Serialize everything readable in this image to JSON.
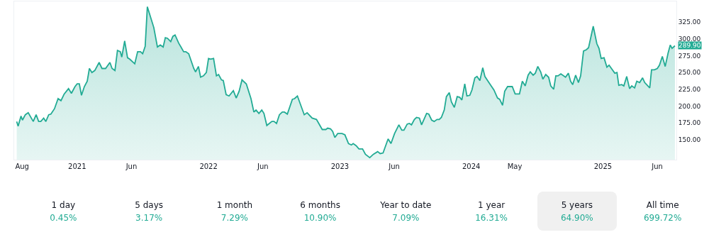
{
  "chart_data": [
    {
      "type": "area",
      "x": [
        "2020-07-17",
        "2020-07-21",
        "2020-07-29",
        "2020-08-02",
        "2020-08-10",
        "2020-08-18",
        "2020-09-01",
        "2020-09-09",
        "2020-09-16",
        "2020-09-22",
        "2020-09-30",
        "2020-10-06",
        "2020-10-14",
        "2020-10-20",
        "2020-10-30",
        "2020-11-09",
        "2020-11-17",
        "2020-11-26",
        "2020-12-08",
        "2020-12-16",
        "2020-12-26",
        "2021-01-01",
        "2021-01-07",
        "2021-01-13",
        "2021-01-21",
        "2021-01-29",
        "2021-02-04",
        "2021-02-11",
        "2021-02-19",
        "2021-03-03",
        "2021-03-11",
        "2021-03-21",
        "2021-04-02",
        "2021-04-08",
        "2021-04-16",
        "2021-04-23",
        "2021-05-01",
        "2021-05-05",
        "2021-05-13",
        "2021-05-21",
        "2021-05-27",
        "2021-06-10",
        "2021-06-18",
        "2021-06-26",
        "2021-07-02",
        "2021-07-09",
        "2021-07-15",
        "2021-08-02",
        "2021-08-12",
        "2021-08-20",
        "2021-08-28",
        "2021-09-03",
        "2021-09-09",
        "2021-09-18",
        "2021-09-24",
        "2021-09-30",
        "2021-10-10",
        "2021-10-24",
        "2021-10-30",
        "2021-11-07",
        "2021-11-21",
        "2021-11-26",
        "2021-12-04",
        "2021-12-10",
        "2021-12-18",
        "2021-12-26",
        "2022-01-01",
        "2022-01-07",
        "2022-01-15",
        "2022-01-23",
        "2022-01-29",
        "2022-02-06",
        "2022-02-11",
        "2022-02-19",
        "2022-02-27",
        "2022-03-11",
        "2022-03-19",
        "2022-03-27",
        "2022-04-04",
        "2022-04-16",
        "2022-04-29",
        "2022-05-07",
        "2022-05-13",
        "2022-05-21",
        "2022-05-29",
        "2022-06-04",
        "2022-06-12",
        "2022-06-26",
        "2022-07-02",
        "2022-07-09",
        "2022-07-17",
        "2022-07-25",
        "2022-07-31",
        "2022-08-08",
        "2022-08-22",
        "2022-08-28",
        "2022-09-05",
        "2022-09-24",
        "2022-10-02",
        "2022-10-16",
        "2022-10-28",
        "2022-11-13",
        "2022-11-23",
        "2022-11-28",
        "2022-12-06",
        "2022-12-12",
        "2022-12-18",
        "2022-12-26",
        "2023-01-07",
        "2023-01-15",
        "2023-01-25",
        "2023-02-02",
        "2023-02-07",
        "2023-02-15",
        "2023-02-23",
        "2023-03-05",
        "2023-03-13",
        "2023-03-25",
        "2023-04-04",
        "2023-04-16",
        "2023-04-23",
        "2023-05-01",
        "2023-05-15",
        "2023-05-23",
        "2023-06-02",
        "2023-06-14",
        "2023-06-22",
        "2023-06-28",
        "2023-07-07",
        "2023-07-13",
        "2023-07-19",
        "2023-07-27",
        "2023-08-02",
        "2023-08-10",
        "2023-08-16",
        "2023-08-30",
        "2023-09-05",
        "2023-09-13",
        "2023-09-20",
        "2023-09-28",
        "2023-10-04",
        "2023-10-10",
        "2023-10-18",
        "2023-10-24",
        "2023-11-01",
        "2023-11-07",
        "2023-11-15",
        "2023-11-23",
        "2023-11-30",
        "2023-12-06",
        "2023-12-14",
        "2023-12-20",
        "2023-12-28",
        "2024-01-03",
        "2024-01-11",
        "2024-01-17",
        "2024-01-25",
        "2024-02-02",
        "2024-02-08",
        "2024-02-23",
        "2024-03-04",
        "2024-03-14",
        "2024-03-20",
        "2024-03-28",
        "2024-04-03",
        "2024-04-11",
        "2024-04-24",
        "2024-05-02",
        "2024-05-14",
        "2024-05-22",
        "2024-05-30",
        "2024-06-07",
        "2024-06-13",
        "2024-06-21",
        "2024-06-27",
        "2024-07-04",
        "2024-07-12",
        "2024-07-18",
        "2024-07-26",
        "2024-08-03",
        "2024-08-09",
        "2024-08-17",
        "2024-08-23",
        "2024-08-29",
        "2024-09-06",
        "2024-09-19",
        "2024-09-27",
        "2024-10-03",
        "2024-10-09",
        "2024-10-17",
        "2024-10-25",
        "2024-10-31",
        "2024-11-08",
        "2024-11-16",
        "2024-11-22",
        "2024-12-05",
        "2024-12-15",
        "2024-12-21",
        "2024-12-27",
        "2025-01-04",
        "2025-01-12",
        "2025-01-18",
        "2025-01-26",
        "2025-02-03",
        "2025-02-09",
        "2025-02-14",
        "2025-02-22",
        "2025-02-28",
        "2025-03-08",
        "2025-03-16",
        "2025-03-22",
        "2025-03-30",
        "2025-04-05",
        "2025-04-13",
        "2025-04-21",
        "2025-04-27",
        "2025-05-11",
        "2025-05-16",
        "2025-05-24",
        "2025-06-01",
        "2025-06-07",
        "2025-06-15",
        "2025-06-23",
        "2025-07-01",
        "2025-07-07",
        "2025-07-12",
        "2025-07-20"
      ],
      "series": [
        {
          "color": "#22ab94",
          "values": [
            177,
            170,
            185,
            179,
            187,
            190,
            177,
            187,
            177,
            177,
            182,
            177,
            187,
            188,
            196,
            211,
            208,
            218,
            226,
            219,
            229,
            233,
            233,
            216,
            229,
            237,
            256,
            250,
            253,
            265,
            256,
            256,
            265,
            256,
            253,
            283,
            281,
            273,
            297,
            272,
            270,
            263,
            281,
            281,
            278,
            289,
            348,
            317,
            288,
            291,
            288,
            302,
            301,
            296,
            304,
            306,
            294,
            281,
            281,
            278,
            256,
            251,
            259,
            243,
            245,
            250,
            271,
            270,
            271,
            245,
            247,
            239,
            238,
            217,
            215,
            223,
            212,
            222,
            239,
            233,
            211,
            191,
            194,
            189,
            194,
            189,
            171,
            177,
            177,
            174,
            187,
            191,
            191,
            188,
            210,
            211,
            215,
            187,
            190,
            182,
            180,
            165,
            165,
            167,
            166,
            162,
            153,
            159,
            159,
            157,
            144,
            142,
            144,
            141,
            136,
            136,
            128,
            123,
            128,
            132,
            129,
            130,
            151,
            144,
            159,
            172,
            164,
            164,
            173,
            174,
            172,
            180,
            183,
            182,
            172,
            189,
            188,
            179,
            177,
            180,
            180,
            183,
            194,
            214,
            220,
            206,
            198,
            214,
            213,
            209,
            233,
            215,
            216,
            224,
            242,
            244,
            238,
            257,
            244,
            232,
            224,
            212,
            210,
            201,
            222,
            229,
            229,
            218,
            218,
            237,
            230,
            246,
            251,
            246,
            249,
            259,
            251,
            240,
            247,
            243,
            230,
            225,
            245,
            245,
            248,
            243,
            249,
            237,
            232,
            246,
            235,
            245,
            282,
            284,
            287,
            319,
            293,
            286,
            271,
            272,
            258,
            261,
            255,
            249,
            250,
            231,
            232,
            230,
            244,
            226,
            230,
            227,
            237,
            235,
            242,
            235,
            227,
            254,
            254,
            256,
            261,
            274,
            259,
            279,
            291,
            286,
            289.9
          ]
        }
      ],
      "xlim": [
        "2020-07-10",
        "2025-07-24"
      ],
      "xticks": [
        {
          "value": "2020-08-01",
          "label": "Aug"
        },
        {
          "value": "2021-01-01",
          "label": "2021"
        },
        {
          "value": "2021-06-01",
          "label": "Jun"
        },
        {
          "value": "2022-01-01",
          "label": "2022"
        },
        {
          "value": "2022-06-01",
          "label": "Jun"
        },
        {
          "value": "2023-01-01",
          "label": "2023"
        },
        {
          "value": "2023-06-01",
          "label": "Jun"
        },
        {
          "value": "2024-01-01",
          "label": "2024"
        },
        {
          "value": "2024-05-01",
          "label": "May"
        },
        {
          "value": "2025-01-01",
          "label": "2025"
        },
        {
          "value": "2025-06-01",
          "label": "Jun"
        }
      ],
      "ylim": [
        120,
        356
      ],
      "yticks": [
        {
          "value": 150,
          "label": "150.00"
        },
        {
          "value": 175,
          "label": "175.00"
        },
        {
          "value": 200,
          "label": "200.00"
        },
        {
          "value": 225,
          "label": "225.00"
        },
        {
          "value": 250,
          "label": "250.00"
        },
        {
          "value": 275,
          "label": "275.00"
        },
        {
          "value": 300,
          "label": "300.00"
        },
        {
          "value": 325,
          "label": "325.00"
        }
      ],
      "annotations": [
        {
          "text": "289.90",
          "x": "2025-07-20",
          "y": 289.9
        }
      ],
      "marker": "none",
      "line_style": "solid"
    },
    {
      "type": "other",
      "categories": [
        "1 day",
        "5 days",
        "1 month",
        "6 months",
        "Year to date",
        "1 year",
        "5 years",
        "All time"
      ],
      "value_labels": [
        "0.45%",
        "3.17%",
        "7.29%",
        "10.90%",
        "7.09%",
        "16.31%",
        "64.90%",
        "699.72%"
      ],
      "color": "#22ab94",
      "colors": [
        "#ffffff",
        "#ffffff",
        "#ffffff",
        "#ffffff",
        "#ffffff",
        "#ffffff",
        "#f0f0f0",
        "#ffffff"
      ]
    }
  ]
}
